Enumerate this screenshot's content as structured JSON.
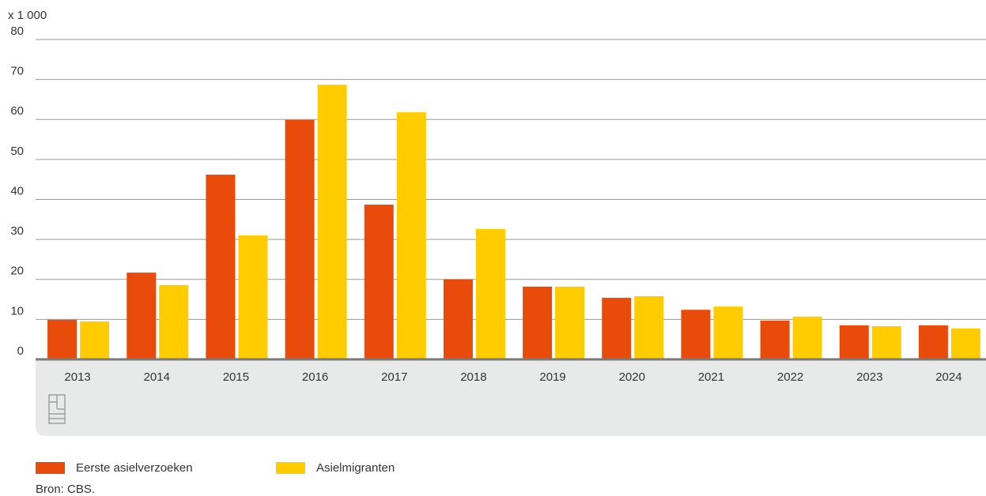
{
  "chart_data": {
    "type": "bar",
    "unit_label": "x 1 000",
    "source": "Bron: CBS.",
    "categories": [
      "2013",
      "2014",
      "2015",
      "2016",
      "2017",
      "2018",
      "2019",
      "2020",
      "2021",
      "2022",
      "2023",
      "2024"
    ],
    "series": [
      {
        "name": "Eerste asielverzoeken",
        "color": "#e94c0a",
        "values": [
          9.9,
          21.7,
          46.2,
          59.9,
          38.7,
          20.0,
          18.2,
          15.4,
          12.4,
          9.7,
          8.5,
          8.5
        ]
      },
      {
        "name": "Asielmigranten",
        "color": "#ffcc00",
        "values": [
          9.5,
          18.6,
          31.0,
          68.7,
          61.8,
          32.6,
          18.2,
          15.8,
          13.2,
          10.7,
          8.3,
          7.7
        ]
      }
    ],
    "ylim": [
      0,
      80
    ],
    "yticks": [
      0,
      10,
      20,
      30,
      40,
      50,
      60,
      70,
      80
    ],
    "grid": true
  }
}
